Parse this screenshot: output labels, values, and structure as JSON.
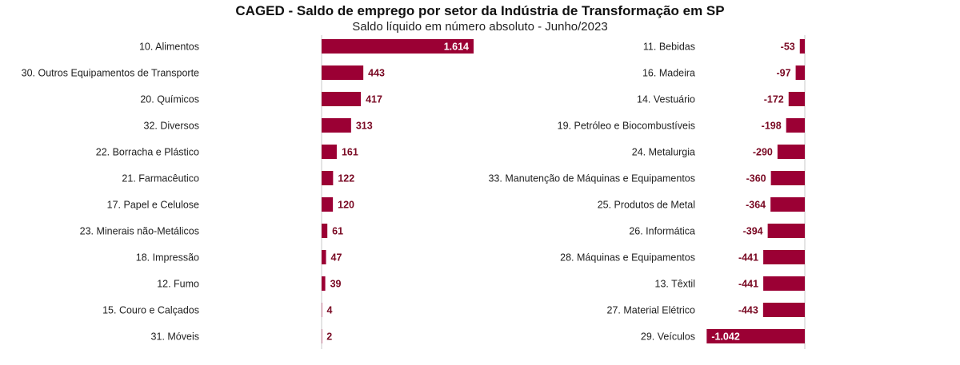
{
  "title": "CAGED - Saldo de emprego por setor da Indústria de Transformação em SP",
  "subtitle": "Saldo líquido em número absoluto - Junho/2023",
  "colors": {
    "bar": "#9b0034",
    "axis": "#c8c8c8",
    "label_dark": "#7a0a24",
    "label_light": "#ffffff"
  },
  "chart_data": [
    {
      "type": "bar",
      "orientation": "horizontal",
      "categories": [
        "10. Alimentos",
        "30. Outros Equipamentos de Transporte",
        "20. Químicos",
        "32. Diversos",
        "22. Borracha e Plástico",
        "21. Farmacêutico",
        "17. Papel e Celulose",
        "23. Minerais não-Metálicos",
        "18. Impressão",
        "12. Fumo",
        "15. Couro e Calçados",
        "31. Móveis"
      ],
      "values": [
        1614,
        443,
        417,
        313,
        161,
        122,
        120,
        61,
        47,
        39,
        4,
        2
      ],
      "value_labels": [
        "1.614",
        "443",
        "417",
        "313",
        "161",
        "122",
        "120",
        "61",
        "47",
        "39",
        "4",
        "2"
      ]
    },
    {
      "type": "bar",
      "orientation": "horizontal",
      "categories": [
        "11. Bebidas",
        "16. Madeira",
        "14. Vestuário",
        "19. Petróleo e Biocombustíveis",
        "24. Metalurgia",
        "33. Manutenção de Máquinas e Equipamentos",
        "25. Produtos de Metal",
        "26. Informática",
        "28. Máquinas e Equipamentos",
        "13. Têxtil",
        "27. Material Elétrico",
        "29. Veículos"
      ],
      "values": [
        -53,
        -97,
        -172,
        -198,
        -290,
        -360,
        -364,
        -394,
        -441,
        -441,
        -443,
        -1042
      ],
      "value_labels": [
        "-53",
        "-97",
        "-172",
        "-198",
        "-290",
        "-360",
        "-364",
        "-394",
        "-441",
        "-441",
        "-443",
        "-1.042"
      ]
    }
  ]
}
